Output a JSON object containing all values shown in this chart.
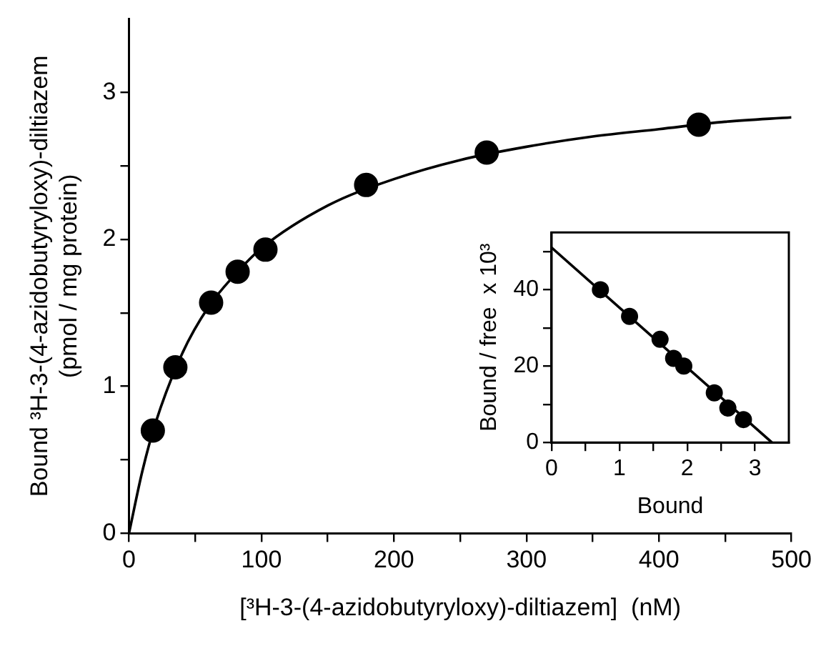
{
  "chart_data": [
    {
      "type": "scatter",
      "xlabel": "[³H-3-(4-azidobutyryloxy)-diltiazem]  (nM)",
      "ylabel": "Bound ³H-3-(4-azidobutyryloxy)-diltiazem\n(pmol / mg protein)",
      "xlim": [
        0,
        500
      ],
      "ylim": [
        0,
        3.5
      ],
      "xticks": [
        0,
        {
          "value": 50,
          "label": null
        },
        100,
        {
          "value": 150,
          "label": null
        },
        200,
        {
          "value": 250,
          "label": null
        },
        300,
        {
          "value": 350,
          "label": null
        },
        400,
        {
          "value": 450,
          "label": null
        },
        500
      ],
      "yticks": [
        0,
        {
          "value": 0.5,
          "label": null
        },
        1,
        {
          "value": 1.5,
          "label": null
        },
        2,
        {
          "value": 2.5,
          "label": null
        },
        3
      ],
      "grid": false,
      "legend": false,
      "series": [
        {
          "type": "line",
          "color": "#000000",
          "marker": "none",
          "line_style": "solid",
          "x": [
            0,
            10,
            20,
            40,
            60,
            80,
            100,
            150,
            200,
            250,
            300,
            350,
            400,
            450,
            500
          ],
          "values": [
            0,
            0.42,
            0.75,
            1.22,
            1.54,
            1.76,
            1.94,
            2.23,
            2.41,
            2.54,
            2.63,
            2.7,
            2.75,
            2.8,
            2.83
          ]
        },
        {
          "color": "#000000",
          "marker": "circle",
          "x": [
            18,
            35,
            62,
            82,
            103,
            179,
            270,
            430
          ],
          "values": [
            0.7,
            1.13,
            1.57,
            1.78,
            1.93,
            2.37,
            2.59,
            2.78
          ]
        }
      ]
    },
    {
      "type": "scatter",
      "xlabel": "Bound",
      "ylabel": "Bound / free  x 10³",
      "xlim": [
        0,
        3.5
      ],
      "ylim": [
        0,
        55
      ],
      "xticks": [
        0,
        {
          "value": 0.5,
          "label": null
        },
        1,
        {
          "value": 1.5,
          "label": null
        },
        2,
        {
          "value": 2.5,
          "label": null
        },
        3
      ],
      "yticks": [
        0,
        {
          "value": 10,
          "label": null
        },
        20,
        {
          "value": 30,
          "label": null
        },
        40,
        {
          "value": 50,
          "label": null
        }
      ],
      "grid": false,
      "legend": false,
      "series": [
        {
          "type": "line",
          "color": "#000000",
          "marker": "none",
          "line_style": "solid",
          "x": [
            0,
            3.25
          ],
          "values": [
            51,
            0
          ]
        },
        {
          "color": "#000000",
          "marker": "circle",
          "x": [
            0.72,
            1.15,
            1.6,
            1.8,
            1.95,
            2.4,
            2.6,
            2.83
          ],
          "values": [
            40,
            33,
            27,
            22,
            20,
            13,
            9,
            6
          ]
        }
      ]
    }
  ]
}
